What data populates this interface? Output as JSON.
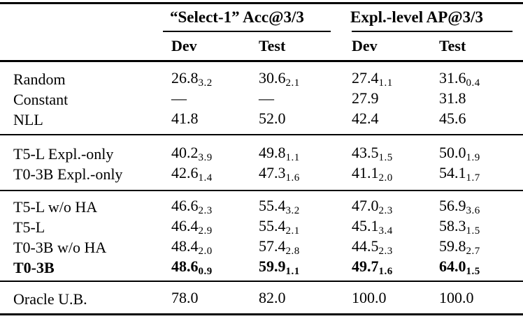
{
  "table": {
    "header": {
      "group1": "“Select-1” Acc@3/3",
      "group2": "Expl.-level AP@3/3",
      "subcols": [
        "Dev",
        "Test",
        "Dev",
        "Test"
      ]
    },
    "sections": [
      {
        "rows": [
          {
            "label": "Random",
            "cells": [
              {
                "v": "26.8",
                "s": "3.2"
              },
              {
                "v": "30.6",
                "s": "2.1"
              },
              {
                "v": "27.4",
                "s": "1.1"
              },
              {
                "v": "31.6",
                "s": "0.4"
              }
            ]
          },
          {
            "label": "Constant",
            "cells": [
              {
                "v": "—",
                "s": ""
              },
              {
                "v": "—",
                "s": ""
              },
              {
                "v": "27.9",
                "s": ""
              },
              {
                "v": "31.8",
                "s": ""
              }
            ]
          },
          {
            "label": "NLL",
            "cells": [
              {
                "v": "41.8",
                "s": ""
              },
              {
                "v": "52.0",
                "s": ""
              },
              {
                "v": "42.4",
                "s": ""
              },
              {
                "v": "45.6",
                "s": ""
              }
            ]
          }
        ]
      },
      {
        "rows": [
          {
            "label": "T5-L Expl.-only",
            "cells": [
              {
                "v": "40.2",
                "s": "3.9"
              },
              {
                "v": "49.8",
                "s": "1.1"
              },
              {
                "v": "43.5",
                "s": "1.5"
              },
              {
                "v": "50.0",
                "s": "1.9"
              }
            ]
          },
          {
            "label": "T0-3B Expl.-only",
            "cells": [
              {
                "v": "42.6",
                "s": "1.4"
              },
              {
                "v": "47.3",
                "s": "1.6"
              },
              {
                "v": "41.1",
                "s": "2.0"
              },
              {
                "v": "54.1",
                "s": "1.7"
              }
            ]
          }
        ]
      },
      {
        "rows": [
          {
            "label": "T5-L w/o HA",
            "cells": [
              {
                "v": "46.6",
                "s": "2.3"
              },
              {
                "v": "55.4",
                "s": "3.2"
              },
              {
                "v": "47.0",
                "s": "2.3"
              },
              {
                "v": "56.9",
                "s": "3.6"
              }
            ]
          },
          {
            "label": "T5-L",
            "cells": [
              {
                "v": "46.4",
                "s": "2.9"
              },
              {
                "v": "55.4",
                "s": "2.1"
              },
              {
                "v": "45.1",
                "s": "3.4"
              },
              {
                "v": "58.3",
                "s": "1.5"
              }
            ]
          },
          {
            "label": "T0-3B w/o HA",
            "cells": [
              {
                "v": "48.4",
                "s": "2.0"
              },
              {
                "v": "57.4",
                "s": "2.8"
              },
              {
                "v": "44.5",
                "s": "2.3"
              },
              {
                "v": "59.8",
                "s": "2.7"
              }
            ]
          },
          {
            "label": "T0-3B",
            "cells": [
              {
                "v": "48.6",
                "s": "0.9"
              },
              {
                "v": "59.9",
                "s": "1.1"
              },
              {
                "v": "49.7",
                "s": "1.6"
              },
              {
                "v": "64.0",
                "s": "1.5"
              }
            ]
          }
        ]
      },
      {
        "rows": [
          {
            "label": "Oracle U.B.",
            "cells": [
              {
                "v": "78.0",
                "s": ""
              },
              {
                "v": "82.0",
                "s": ""
              },
              {
                "v": "100.0",
                "s": ""
              },
              {
                "v": "100.0",
                "s": ""
              }
            ]
          }
        ]
      }
    ]
  }
}
